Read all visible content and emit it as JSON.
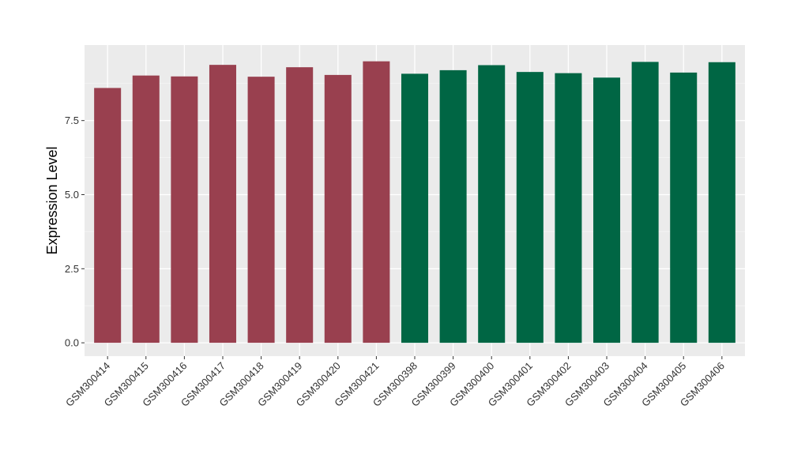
{
  "chart_data": {
    "type": "bar",
    "title": "",
    "xlabel": "",
    "ylabel": "Expression Level",
    "ylim": [
      -0.45,
      10.05
    ],
    "yticks": [
      0.0,
      2.5,
      5.0,
      7.5
    ],
    "ytick_labels": [
      "0.0",
      "2.5",
      "5.0",
      "7.5"
    ],
    "grid": true,
    "legend": "none",
    "colors": {
      "group_1": "#99404F",
      "group_2": "#006644",
      "panel_background": "#EBEBEB",
      "grid_major": "#FFFFFF",
      "grid_minor": "#F5F5F5"
    },
    "categories": [
      "GSM300414",
      "GSM300415",
      "GSM300416",
      "GSM300417",
      "GSM300418",
      "GSM300419",
      "GSM300420",
      "GSM300421",
      "GSM300398",
      "GSM300399",
      "GSM300400",
      "GSM300401",
      "GSM300402",
      "GSM300403",
      "GSM300404",
      "GSM300405",
      "GSM300406"
    ],
    "values": [
      8.6,
      9.02,
      8.99,
      9.38,
      8.98,
      9.3,
      9.04,
      9.5,
      9.08,
      9.2,
      9.37,
      9.14,
      9.1,
      8.95,
      9.48,
      9.12,
      9.47
    ],
    "bar_groups": [
      "group_1",
      "group_1",
      "group_1",
      "group_1",
      "group_1",
      "group_1",
      "group_1",
      "group_1",
      "group_2",
      "group_2",
      "group_2",
      "group_2",
      "group_2",
      "group_2",
      "group_2",
      "group_2",
      "group_2"
    ]
  }
}
